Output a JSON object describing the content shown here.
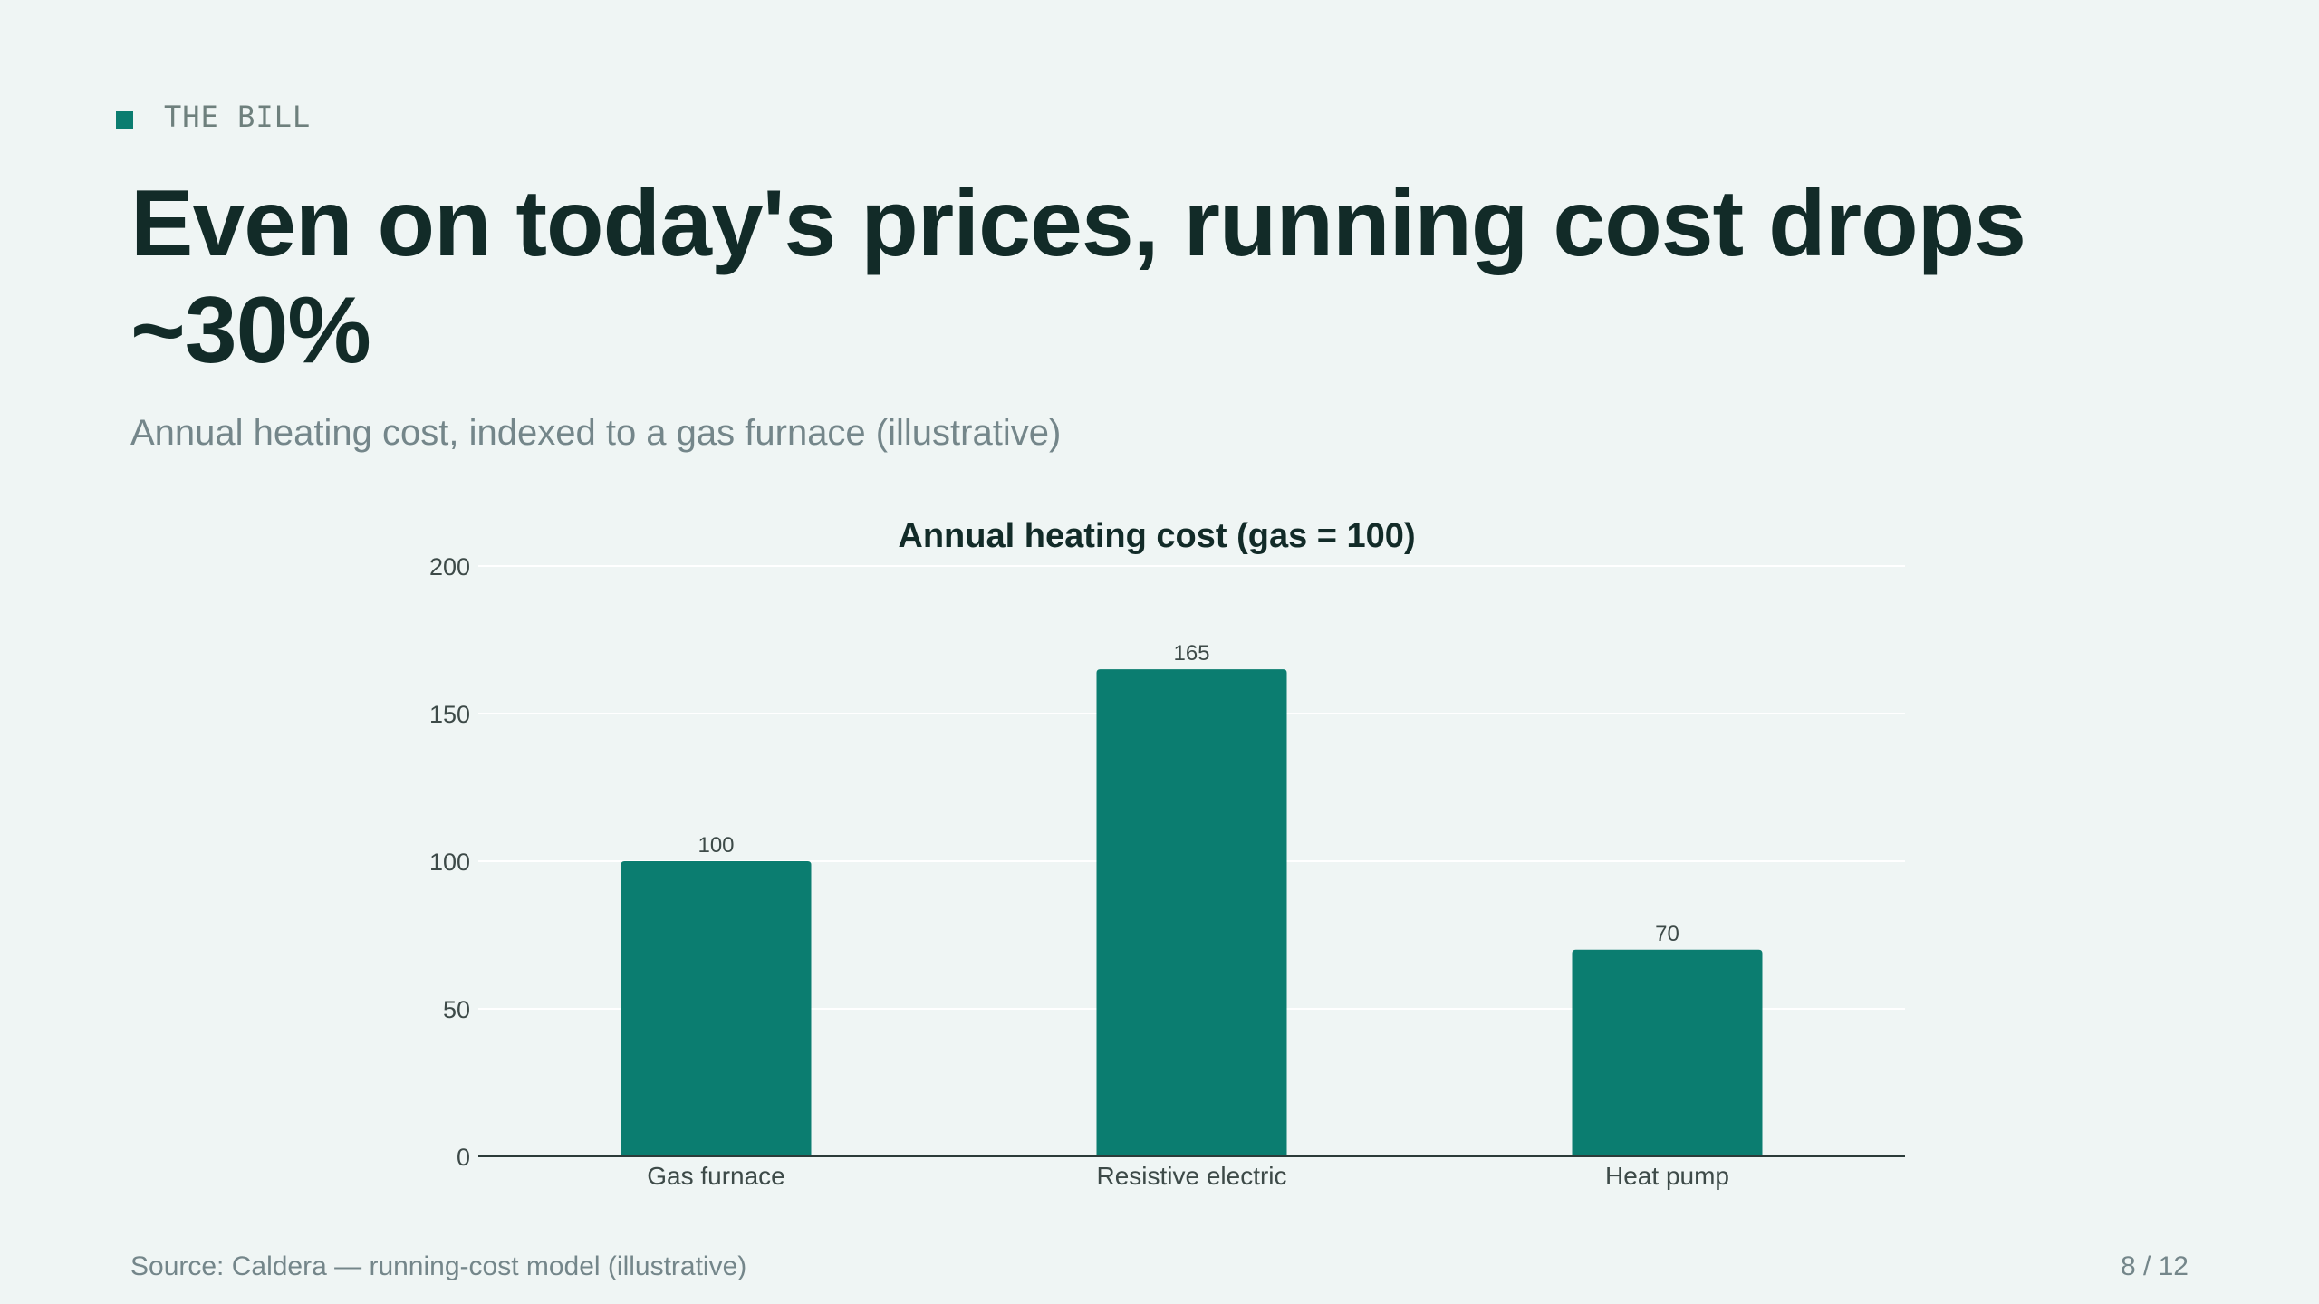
{
  "eyebrow": "THE BILL",
  "title": "Even on today's prices, running cost drops ~30%",
  "subtitle": "Annual heating cost, indexed to a gas furnace (illustrative)",
  "footer": {
    "source": "Source: Caldera — running-cost model (illustrative)",
    "page": "8 / 12"
  },
  "colors": {
    "bar": "#0b7d70",
    "accent": "#0b7d70",
    "title": "#122b28",
    "muted": "#74868a"
  },
  "chart_data": {
    "type": "bar",
    "title": "Annual heating cost (gas = 100)",
    "xlabel": "",
    "ylabel": "",
    "categories": [
      "Gas furnace",
      "Resistive electric",
      "Heat pump"
    ],
    "values": [
      100,
      165,
      70
    ],
    "data_labels": [
      "100",
      "165",
      "70"
    ],
    "ylim": [
      0,
      200
    ],
    "yticks": [
      0,
      50,
      100,
      150,
      200
    ],
    "grid": true,
    "legend": "none"
  }
}
